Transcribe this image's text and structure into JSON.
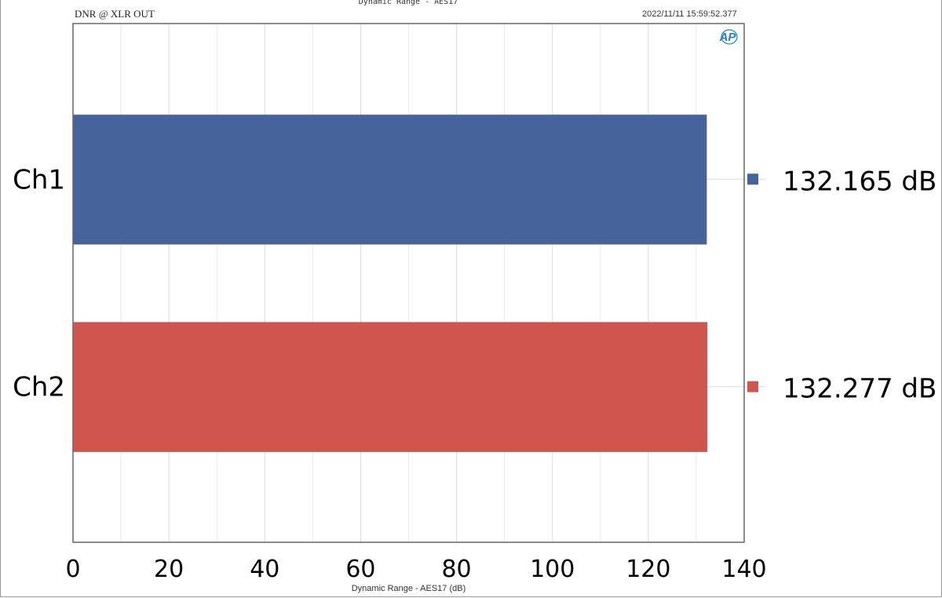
{
  "chart_data": {
    "type": "bar",
    "orientation": "horizontal",
    "title": "Dynamic Range - AES17",
    "subtitle": "DNR @ XLR OUT",
    "timestamp": "2022/11/11 15:59:52.377",
    "xlabel": "Dynamic Range - AES17 (dB)",
    "xlim": [
      0,
      140
    ],
    "xticks": [
      "0",
      "20",
      "40",
      "60",
      "80",
      "100",
      "120",
      "140"
    ],
    "grid": true,
    "categories": [
      "Ch1",
      "Ch2"
    ],
    "values": [
      132.165,
      132.277
    ],
    "value_labels": [
      "132.165 dB",
      "132.277 dB"
    ],
    "colors": [
      "#46639c",
      "#d1554f"
    ],
    "legend_placement": "right",
    "logo": "AP"
  }
}
